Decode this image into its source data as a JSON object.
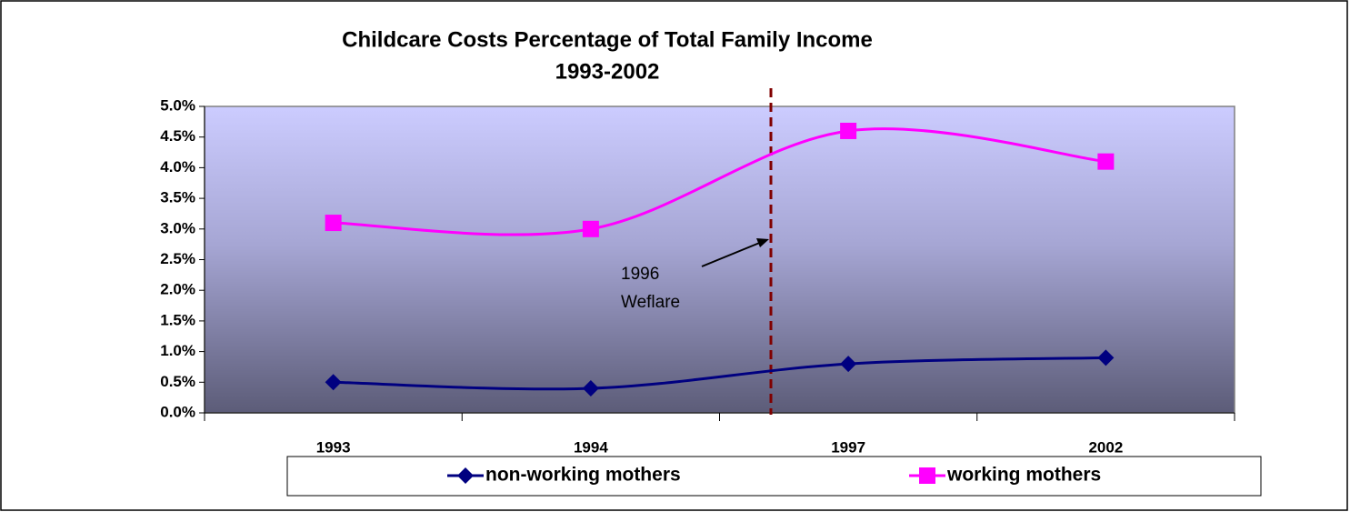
{
  "chart_data": {
    "type": "line",
    "title": "Childcare Costs Percentage of Total Family Income",
    "subtitle": "1993-2002",
    "categories": [
      "1993",
      "1994",
      "1997",
      "2002"
    ],
    "series": [
      {
        "name": "non-working mothers",
        "color": "#000080",
        "marker": "diamond",
        "values": [
          0.5,
          0.4,
          0.8,
          0.9
        ]
      },
      {
        "name": "working mothers",
        "color": "#ff00ff",
        "marker": "square",
        "values": [
          3.1,
          3.0,
          4.6,
          4.1
        ]
      }
    ],
    "ylim": [
      0,
      5
    ],
    "yticks": [
      {
        "value": 0,
        "label": "0.0%"
      },
      {
        "value": 0.5,
        "label": "0.5%"
      },
      {
        "value": 1,
        "label": "1.0%"
      },
      {
        "value": 1.5,
        "label": "1.5%"
      },
      {
        "value": 2,
        "label": "2.0%"
      },
      {
        "value": 2.5,
        "label": "2.5%"
      },
      {
        "value": 3,
        "label": "3.0%"
      },
      {
        "value": 3.5,
        "label": "3.5%"
      },
      {
        "value": 4,
        "label": "4.0%"
      },
      {
        "value": 4.5,
        "label": "4.5%"
      },
      {
        "value": 5,
        "label": "5.0%"
      }
    ],
    "smooth": true,
    "legend": "bottom",
    "annotation_lines": [
      "1996",
      "Weflare"
    ]
  }
}
